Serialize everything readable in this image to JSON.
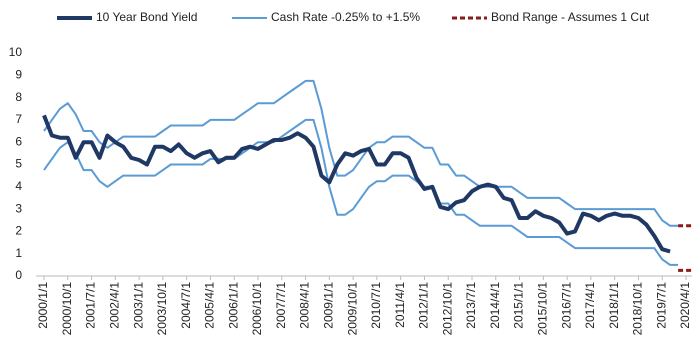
{
  "chart_data": {
    "type": "line",
    "categories": [
      "2000/1/1",
      null,
      null,
      "2000/10/1",
      null,
      null,
      "2001/7/1",
      null,
      null,
      "2002/4/1",
      null,
      null,
      "2003/1/1",
      null,
      null,
      "2003/10/1",
      null,
      null,
      "2004/7/1",
      null,
      null,
      "2005/4/1",
      null,
      null,
      "2006/1/1",
      null,
      null,
      "2006/10/1",
      null,
      null,
      "2007/7/1",
      null,
      null,
      "2008/4/1",
      null,
      null,
      "2009/1/1",
      null,
      null,
      "2009/10/1",
      null,
      null,
      "2010/7/1",
      null,
      null,
      "2011/4/1",
      null,
      null,
      "2012/1/1",
      null,
      null,
      "2012/10/1",
      null,
      null,
      "2013/7/1",
      null,
      null,
      "2014/4/1",
      null,
      null,
      "2015/1/1",
      null,
      null,
      "2015/10/1",
      null,
      null,
      "2016/7/1",
      null,
      null,
      "2017/4/1",
      null,
      null,
      "2018/1/1",
      null,
      null,
      "2018/10/1",
      null,
      null,
      "2019/7/1",
      null,
      null,
      "2020/4/1"
    ],
    "series": [
      {
        "name": "10 Year Bond Yield",
        "color": "#1f3864",
        "width": 4,
        "values": [
          7.2,
          6.3,
          6.2,
          6.2,
          5.3,
          6.0,
          6.0,
          5.3,
          6.3,
          6.0,
          5.8,
          5.3,
          5.2,
          5.0,
          5.8,
          5.8,
          5.6,
          5.9,
          5.5,
          5.3,
          5.5,
          5.6,
          5.1,
          5.3,
          5.3,
          5.7,
          5.8,
          5.7,
          5.9,
          6.1,
          6.1,
          6.2,
          6.4,
          6.2,
          5.8,
          4.5,
          4.2,
          5.0,
          5.5,
          5.4,
          5.6,
          5.7,
          5.0,
          5.0,
          5.5,
          5.5,
          5.3,
          4.4,
          3.9,
          4.0,
          3.1,
          3.0,
          3.3,
          3.4,
          3.8,
          4.0,
          4.1,
          4.0,
          3.5,
          3.4,
          2.6,
          2.6,
          2.9,
          2.7,
          2.6,
          2.4,
          1.9,
          2.0,
          2.8,
          2.7,
          2.5,
          2.7,
          2.8,
          2.7,
          2.7,
          2.6,
          2.3,
          1.8,
          1.2,
          1.1,
          null,
          null
        ]
      },
      {
        "name": "Cash Rate -0.25% to +1.5%",
        "color": "#5b9bd5",
        "width": 2,
        "values": [
          4.75,
          5.25,
          5.75,
          6.0,
          5.5,
          4.75,
          4.75,
          4.25,
          4.0,
          4.25,
          4.5,
          4.5,
          4.5,
          4.5,
          4.5,
          4.75,
          5.0,
          5.0,
          5.0,
          5.0,
          5.0,
          5.25,
          5.25,
          5.25,
          5.25,
          5.5,
          5.75,
          6.0,
          6.0,
          6.0,
          6.25,
          6.5,
          6.75,
          7.0,
          7.0,
          5.75,
          4.0,
          2.75,
          2.75,
          3.0,
          3.5,
          4.0,
          4.25,
          4.25,
          4.5,
          4.5,
          4.5,
          4.25,
          4.0,
          4.0,
          3.25,
          3.25,
          2.75,
          2.75,
          2.5,
          2.25,
          2.25,
          2.25,
          2.25,
          2.25,
          2.0,
          1.75,
          1.75,
          1.75,
          1.75,
          1.75,
          1.5,
          1.25,
          1.25,
          1.25,
          1.25,
          1.25,
          1.25,
          1.25,
          1.25,
          1.25,
          1.25,
          1.25,
          0.75,
          0.5,
          0.5,
          null
        ],
        "values_high": [
          6.5,
          7.0,
          7.5,
          7.75,
          7.25,
          6.5,
          6.5,
          6.0,
          5.75,
          6.0,
          6.25,
          6.25,
          6.25,
          6.25,
          6.25,
          6.5,
          6.75,
          6.75,
          6.75,
          6.75,
          6.75,
          7.0,
          7.0,
          7.0,
          7.0,
          7.25,
          7.5,
          7.75,
          7.75,
          7.75,
          8.0,
          8.25,
          8.5,
          8.75,
          8.75,
          7.5,
          5.75,
          4.5,
          4.5,
          4.75,
          5.25,
          5.75,
          6.0,
          6.0,
          6.25,
          6.25,
          6.25,
          6.0,
          5.75,
          5.75,
          5.0,
          5.0,
          4.5,
          4.5,
          4.25,
          4.0,
          4.0,
          4.0,
          4.0,
          4.0,
          3.75,
          3.5,
          3.5,
          3.5,
          3.5,
          3.5,
          3.25,
          3.0,
          3.0,
          3.0,
          3.0,
          3.0,
          3.0,
          3.0,
          3.0,
          3.0,
          3.0,
          3.0,
          2.5,
          2.25,
          2.25,
          null
        ]
      },
      {
        "name": "Bond Range - Assumes 1 Cut",
        "color": "#8b1a1a",
        "width": 3,
        "dashed": true,
        "values": [
          null,
          null,
          null,
          null,
          null,
          null,
          null,
          null,
          null,
          null,
          null,
          null,
          null,
          null,
          null,
          null,
          null,
          null,
          null,
          null,
          null,
          null,
          null,
          null,
          null,
          null,
          null,
          null,
          null,
          null,
          null,
          null,
          null,
          null,
          null,
          null,
          null,
          null,
          null,
          null,
          null,
          null,
          null,
          null,
          null,
          null,
          null,
          null,
          null,
          null,
          null,
          null,
          null,
          null,
          null,
          null,
          null,
          null,
          null,
          null,
          null,
          null,
          null,
          null,
          null,
          null,
          null,
          null,
          null,
          null,
          null,
          null,
          null,
          null,
          null,
          null,
          null,
          null,
          null,
          null,
          0.25,
          0.25
        ],
        "values_high": [
          null,
          null,
          null,
          null,
          null,
          null,
          null,
          null,
          null,
          null,
          null,
          null,
          null,
          null,
          null,
          null,
          null,
          null,
          null,
          null,
          null,
          null,
          null,
          null,
          null,
          null,
          null,
          null,
          null,
          null,
          null,
          null,
          null,
          null,
          null,
          null,
          null,
          null,
          null,
          null,
          null,
          null,
          null,
          null,
          null,
          null,
          null,
          null,
          null,
          null,
          null,
          null,
          null,
          null,
          null,
          null,
          null,
          null,
          null,
          null,
          null,
          null,
          null,
          null,
          null,
          null,
          null,
          null,
          null,
          null,
          null,
          null,
          null,
          null,
          null,
          null,
          null,
          null,
          null,
          null,
          2.25,
          2.25
        ]
      }
    ],
    "ylim": [
      0,
      10
    ],
    "yticks": [
      0,
      1,
      2,
      3,
      4,
      5,
      6,
      7,
      8,
      9,
      10
    ],
    "grid": false,
    "legend": "top"
  }
}
